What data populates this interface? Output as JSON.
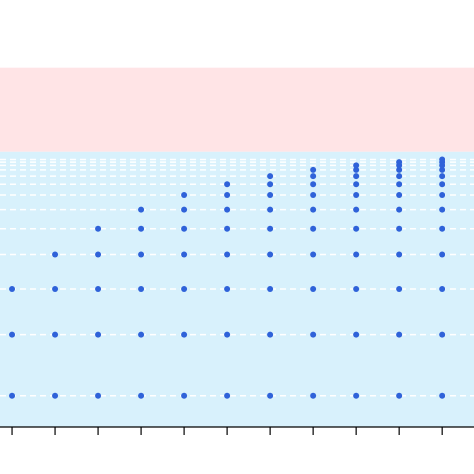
{
  "chart_data": {
    "type": "scatter",
    "x": [
      1,
      1,
      1,
      2,
      2,
      2,
      2,
      3,
      3,
      3,
      3,
      3,
      4,
      4,
      4,
      4,
      4,
      4,
      5,
      5,
      5,
      5,
      5,
      5,
      5,
      6,
      6,
      6,
      6,
      6,
      6,
      6,
      6,
      7,
      7,
      7,
      7,
      7,
      7,
      7,
      7,
      7,
      8,
      8,
      8,
      8,
      8,
      8,
      8,
      8,
      8,
      8,
      9,
      9,
      9,
      9,
      9,
      9,
      9,
      9,
      9,
      9,
      9,
      10,
      10,
      10,
      10,
      10,
      10,
      10,
      10,
      10,
      10,
      10,
      10,
      11,
      11,
      11,
      11,
      11,
      11,
      11,
      11,
      11,
      11,
      11,
      11,
      11
    ],
    "values": [
      0.25,
      0.438,
      0.578,
      0.25,
      0.438,
      0.578,
      0.684,
      0.25,
      0.438,
      0.578,
      0.684,
      0.763,
      0.25,
      0.438,
      0.578,
      0.684,
      0.763,
      0.822,
      0.25,
      0.438,
      0.578,
      0.684,
      0.763,
      0.822,
      0.867,
      0.25,
      0.438,
      0.578,
      0.684,
      0.763,
      0.822,
      0.867,
      0.9,
      0.25,
      0.438,
      0.578,
      0.684,
      0.763,
      0.822,
      0.867,
      0.9,
      0.925,
      0.25,
      0.438,
      0.578,
      0.684,
      0.763,
      0.822,
      0.867,
      0.9,
      0.925,
      0.944,
      0.25,
      0.438,
      0.578,
      0.684,
      0.763,
      0.822,
      0.867,
      0.9,
      0.925,
      0.944,
      0.958,
      0.25,
      0.438,
      0.578,
      0.684,
      0.763,
      0.822,
      0.867,
      0.9,
      0.925,
      0.944,
      0.958,
      0.968,
      0.25,
      0.438,
      0.578,
      0.684,
      0.763,
      0.822,
      0.867,
      0.9,
      0.925,
      0.944,
      0.958,
      0.968,
      0.976
    ],
    "color": "#2f62d9",
    "xlim": [
      0.72,
      11.74
    ],
    "xticks": [
      1,
      2,
      3,
      4,
      5,
      6,
      7,
      8,
      9,
      10,
      11
    ],
    "ylim": [
      0.154,
      1.466
    ],
    "yticks": [
      0.25,
      0.438,
      0.578,
      0.684,
      0.763,
      0.822,
      0.867,
      0.9,
      0.925,
      0.944,
      0.958,
      0.968,
      0.976
    ],
    "grid": true,
    "bands": [
      {
        "from": 0.154,
        "to": 1,
        "color": "#d8f1fc"
      },
      {
        "from": 1,
        "to": 1.258,
        "color": "#ffe4e6"
      }
    ]
  }
}
